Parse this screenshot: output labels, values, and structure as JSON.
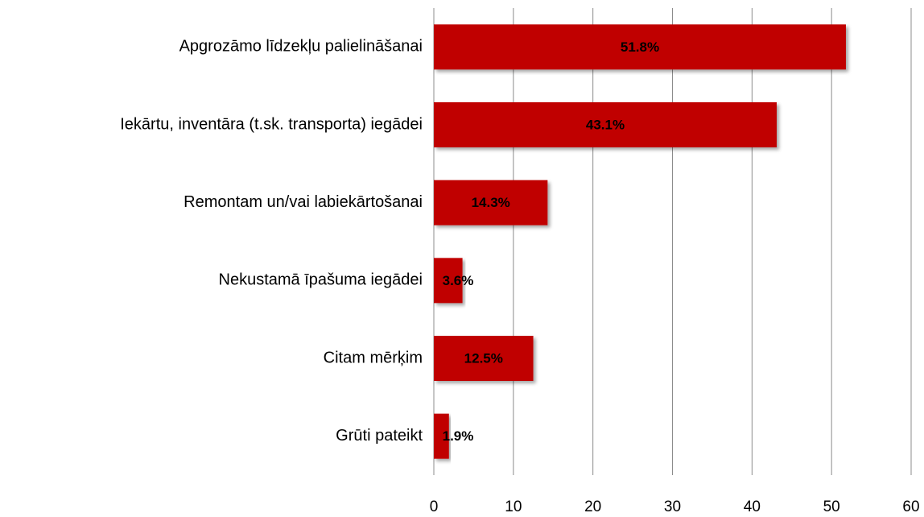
{
  "chart_data": {
    "type": "hbar",
    "categories": [
      "Apgrozāmo līdzekļu palielināšanai",
      "Iekārtu, inventāra (t.sk. transporta) iegādei",
      "Remontam un/vai labiekārtošanai",
      "Nekustamā īpašuma iegādei",
      "Citam mērķim",
      "Grūti pateikt"
    ],
    "values": [
      51.8,
      43.1,
      14.3,
      3.6,
      12.5,
      1.9
    ],
    "value_labels": [
      "51.8%",
      "43.1%",
      "14.3%",
      "3.6%",
      "12.5%",
      "1.9%"
    ],
    "color": "#c00000",
    "xlim": [
      0,
      60
    ],
    "xticks": [
      0,
      10,
      20,
      30,
      40,
      50,
      60
    ],
    "grid": true
  }
}
